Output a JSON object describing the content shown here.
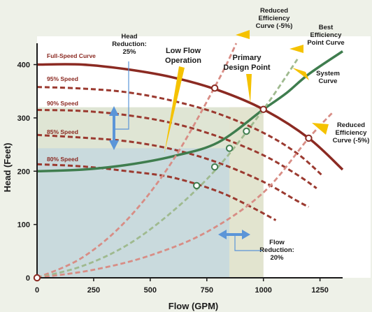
{
  "chart_data": {
    "type": "line",
    "xlabel": "Flow (GPM)",
    "ylabel": "Head (Feet)",
    "xlim": [
      0,
      1350
    ],
    "ylim": [
      0,
      440
    ],
    "x_ticks": [
      0,
      250,
      500,
      750,
      1000,
      1250
    ],
    "y_ticks": [
      0,
      100,
      200,
      300,
      400
    ],
    "regions": [
      {
        "x": [
          0,
          1000
        ],
        "y": [
          0,
          320
        ],
        "color": "#dfe5d4"
      },
      {
        "x": [
          0,
          850
        ],
        "y": [
          0,
          243
        ],
        "color": "#c9dadd"
      },
      {
        "x": [
          850,
          1000
        ],
        "y": [
          0,
          320
        ],
        "color": "#e2e4cf"
      }
    ],
    "series": [
      {
        "name": "Full-Speed Curve",
        "style": "solid",
        "color": "#8b2a22",
        "x": [
          0,
          200,
          400,
          600,
          800,
          1000,
          1200,
          1350
        ],
        "y": [
          400,
          400,
          391,
          376,
          352,
          316,
          262,
          203
        ]
      },
      {
        "name": "95% Speed",
        "style": "dashed",
        "color": "#9b3a30",
        "x": [
          0,
          200,
          400,
          600,
          800,
          1000,
          1150,
          1265
        ],
        "y": [
          358,
          355,
          348,
          332,
          308,
          272,
          233,
          190
        ]
      },
      {
        "name": "90% Speed",
        "style": "dashed",
        "color": "#9b3a30",
        "x": [
          0,
          200,
          400,
          600,
          800,
          1000,
          1150,
          1235
        ],
        "y": [
          315,
          313,
          305,
          290,
          265,
          230,
          193,
          168
        ]
      },
      {
        "name": "85% Speed",
        "style": "dashed",
        "color": "#9b3a30",
        "x": [
          0,
          200,
          400,
          600,
          800,
          1000,
          1150,
          1200
        ],
        "y": [
          268,
          263,
          256,
          241,
          216,
          180,
          144,
          133
        ]
      },
      {
        "name": "80% Speed",
        "style": "dashed",
        "color": "#9b3a30",
        "x": [
          0,
          200,
          400,
          600,
          800,
          950,
          1055
        ],
        "y": [
          213,
          209,
          200,
          188,
          162,
          132,
          108
        ]
      },
      {
        "name": "System Curve",
        "style": "solid",
        "color": "#3f7d4e",
        "x": [
          0,
          200,
          400,
          600,
          800,
          1000,
          1100,
          1200,
          1350
        ],
        "y": [
          200,
          203,
          212,
          228,
          254,
          316,
          346,
          382,
          425
        ]
      },
      {
        "name": "Reduced Efficiency Curve (-5%)",
        "style": "dashed",
        "color": "#d88d85",
        "x": [
          0,
          200,
          400,
          600,
          800,
          880
        ],
        "y": [
          0,
          38,
          110,
          220,
          370,
          440
        ]
      },
      {
        "name": "Best Efficiency Point Curve",
        "style": "dashed",
        "color": "#9fba8f",
        "x": [
          0,
          200,
          400,
          600,
          800,
          1000,
          1150
        ],
        "y": [
          0,
          22,
          62,
          125,
          208,
          316,
          410
        ]
      },
      {
        "name": "Reduced Efficiency Curve (-5%)",
        "style": "dashed",
        "color": "#d88d85",
        "x": [
          0,
          250,
          500,
          750,
          1000,
          1200,
          1310
        ],
        "y": [
          0,
          15,
          42,
          86,
          160,
          262,
          312
        ]
      }
    ],
    "markers": [
      {
        "x": 0,
        "y": 0
      },
      {
        "x": 785,
        "y": 356
      },
      {
        "x": 1000,
        "y": 316
      },
      {
        "x": 1200,
        "y": 262
      },
      {
        "x": 925,
        "y": 275
      },
      {
        "x": 850,
        "y": 243
      },
      {
        "x": 785,
        "y": 208
      },
      {
        "x": 705,
        "y": 173
      }
    ],
    "annotations": {
      "speed_labels": [
        "Full-Speed Curve",
        "95% Speed",
        "90% Speed",
        "85% Speed",
        "80% Speed"
      ],
      "head_reduction": [
        "Head",
        "Reduction:",
        "25%"
      ],
      "low_flow": [
        "Low Flow",
        "Operation"
      ],
      "primary_design": [
        "Primary",
        "Design Point"
      ],
      "reduced_eff_top": [
        "Reduced",
        "Efficiency",
        "Curve (-5%)"
      ],
      "best_eff": [
        "Best",
        "Efficiency",
        "Point Curve"
      ],
      "system": [
        "System",
        "Curve"
      ],
      "reduced_eff_right": [
        "Reduced",
        "Efficiency",
        "Curve (-5%)"
      ],
      "flow_reduction": [
        "Flow",
        "Reduction:",
        "20%"
      ]
    }
  },
  "colors": {
    "axis": "#1a1a1a",
    "pointer": "#f5c200",
    "double_arrow": "#5b95d8",
    "marker_fill": "#ffffff"
  }
}
